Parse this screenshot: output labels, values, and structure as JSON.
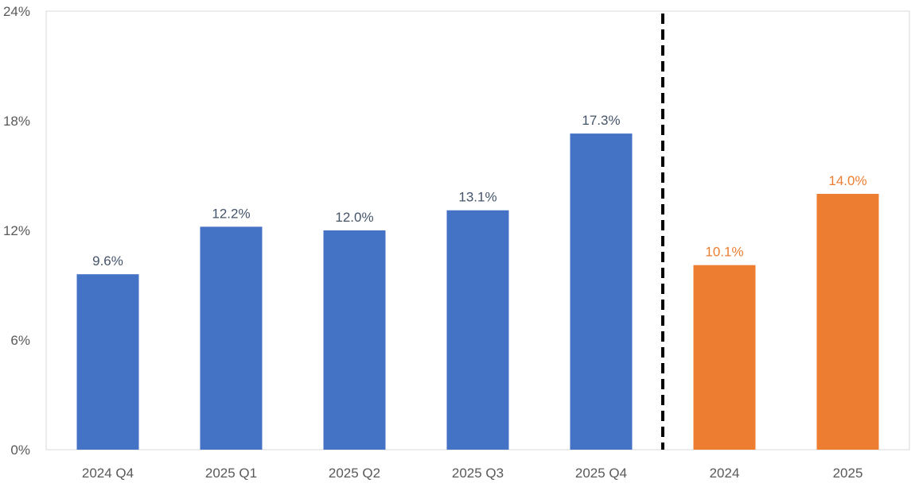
{
  "chart_data": {
    "type": "bar",
    "title": "",
    "xlabel": "",
    "ylabel": "",
    "categories": [
      "2024 Q4",
      "2025 Q1",
      "2025 Q2",
      "2025 Q3",
      "2025 Q4",
      "2024",
      "2025"
    ],
    "values": [
      9.6,
      12.2,
      12.0,
      13.1,
      17.3,
      10.1,
      14.0
    ],
    "value_labels": [
      "9.6%",
      "12.2%",
      "12.0%",
      "13.1%",
      "17.3%",
      "10.1%",
      "14.0%"
    ],
    "groups": [
      {
        "categories": [
          "2024 Q4",
          "2025 Q1",
          "2025 Q2",
          "2025 Q3",
          "2025 Q4"
        ],
        "color": "#4472C4",
        "label_color": "#44546A"
      },
      {
        "categories": [
          "2024",
          "2025"
        ],
        "color": "#ED7D31",
        "label_color": "#ED7D31"
      }
    ],
    "ylim": [
      0,
      24
    ],
    "yticks": [
      0,
      6,
      12,
      18,
      24
    ],
    "ytick_labels": [
      "0%",
      "6%",
      "12%",
      "18%",
      "24%"
    ],
    "separator": {
      "type": "dashed-vertical-line",
      "between": [
        "2025 Q4",
        "2024"
      ],
      "color": "#000000"
    },
    "grid": false,
    "legend": "none",
    "colors": {
      "quarterly_bar": "#4472C4",
      "annual_bar": "#ED7D31",
      "tick_text": "#595959",
      "frame": "#D9D9D9"
    }
  }
}
